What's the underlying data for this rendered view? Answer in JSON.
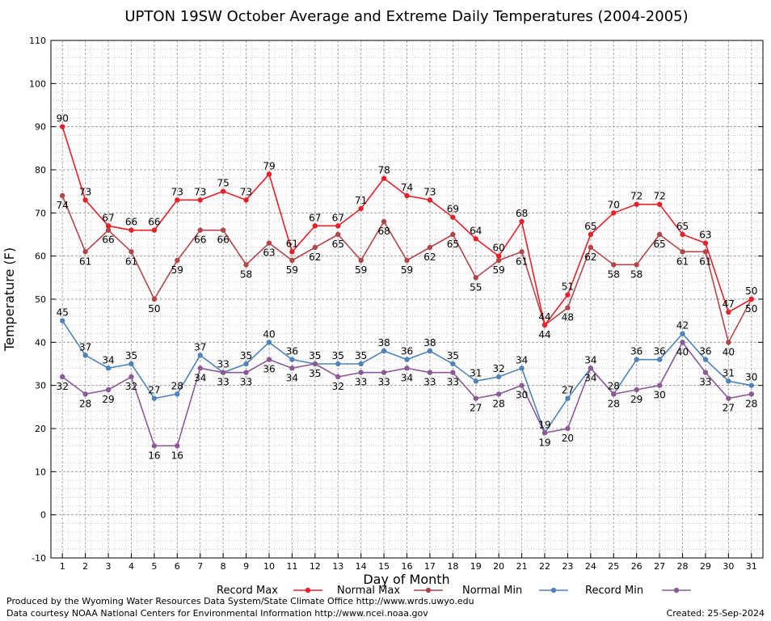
{
  "chart_data": {
    "type": "line",
    "title": "UPTON 19SW October Average and Extreme Daily Temperatures (2004-2005)",
    "xlabel": "Day of Month",
    "ylabel": "Temperature (F)",
    "ylim": [
      -10,
      110
    ],
    "yticks": [
      -10,
      0,
      10,
      20,
      30,
      40,
      50,
      60,
      70,
      80,
      90,
      100,
      110
    ],
    "x": [
      1,
      2,
      3,
      4,
      5,
      6,
      7,
      8,
      9,
      10,
      11,
      12,
      13,
      14,
      15,
      16,
      17,
      18,
      19,
      20,
      21,
      22,
      23,
      24,
      25,
      26,
      27,
      28,
      29,
      30,
      31
    ],
    "grid": true,
    "legend_position": "bottom",
    "series": [
      {
        "name": "Record Max",
        "color": "#e8202a",
        "values": [
          90,
          73,
          67,
          66,
          66,
          73,
          73,
          75,
          73,
          79,
          61,
          67,
          67,
          71,
          78,
          74,
          73,
          69,
          64,
          60,
          68,
          44,
          51,
          65,
          70,
          72,
          72,
          65,
          63,
          47,
          50
        ]
      },
      {
        "name": "Normal Max",
        "color": "#b0464a",
        "values": [
          74,
          61,
          66,
          61,
          50,
          59,
          66,
          66,
          58,
          63,
          59,
          62,
          65,
          59,
          68,
          59,
          62,
          65,
          55,
          59,
          61,
          44,
          48,
          62,
          58,
          58,
          65,
          61,
          61,
          40,
          50
        ]
      },
      {
        "name": "Normal Min",
        "color": "#4f83b8",
        "values": [
          45,
          37,
          34,
          35,
          27,
          28,
          37,
          33,
          35,
          40,
          36,
          35,
          35,
          35,
          38,
          36,
          38,
          35,
          31,
          32,
          34,
          19,
          27,
          34,
          28,
          36,
          36,
          42,
          36,
          31,
          30
        ]
      },
      {
        "name": "Record Min",
        "color": "#8a5a95",
        "values": [
          32,
          28,
          29,
          32,
          16,
          16,
          34,
          33,
          33,
          36,
          34,
          35,
          32,
          33,
          33,
          34,
          33,
          33,
          27,
          28,
          30,
          19,
          20,
          34,
          28,
          29,
          30,
          40,
          33,
          27,
          28
        ]
      }
    ]
  },
  "footer": {
    "line1": "Produced by the Wyoming Water Resources Data System/State Climate Office http://www.wrds.uwyo.edu",
    "line2": "Data courtesy NOAA National Centers for Environmental Information http://www.ncei.noaa.gov",
    "created": "Created:  25-Sep-2024"
  }
}
